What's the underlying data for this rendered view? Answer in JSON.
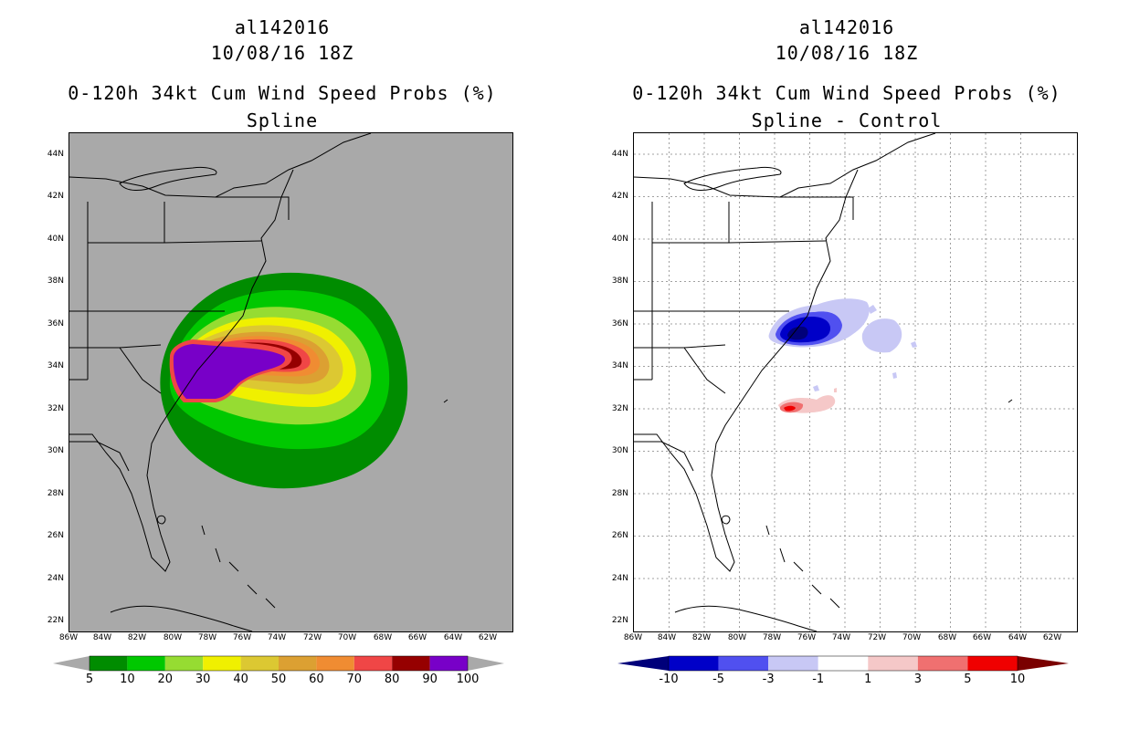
{
  "left": {
    "storm_id": "al142016",
    "datetime": "10/08/16 18Z",
    "product": "0-120h 34kt Cum Wind Speed Probs (%)",
    "subtitle": "Spline",
    "colorbar": {
      "colors": [
        "#008c00",
        "#00c800",
        "#96dc32",
        "#f0f000",
        "#dcc832",
        "#dca032",
        "#f08c32",
        "#f04646",
        "#960000",
        "#7800c8"
      ],
      "labels": [
        "5",
        "10",
        "20",
        "30",
        "40",
        "50",
        "60",
        "70",
        "80",
        "90",
        "100"
      ]
    }
  },
  "right": {
    "storm_id": "al142016",
    "datetime": "10/08/16 18Z",
    "product": "0-120h 34kt Cum Wind Speed Probs (%)",
    "subtitle": "Spline - Control",
    "colorbar": {
      "colors": [
        "#0000c8",
        "#5050f0",
        "#c8c8f5",
        "#ffffff",
        "#f5c8c8",
        "#f07070",
        "#f00000"
      ],
      "end_colors": [
        "#00007a",
        "#7a0000"
      ],
      "labels": [
        "-10",
        "-5",
        "-3",
        "-1",
        "1",
        "3",
        "5",
        "10"
      ]
    }
  },
  "lat_labels": [
    "44N",
    "42N",
    "40N",
    "38N",
    "36N",
    "34N",
    "32N",
    "30N",
    "28N",
    "26N",
    "24N",
    "22N"
  ],
  "lon_labels": [
    "86W",
    "84W",
    "82W",
    "80W",
    "78W",
    "76W",
    "74W",
    "72W",
    "70W",
    "68W",
    "66W",
    "64W",
    "62W"
  ],
  "colors": {
    "map_bg_left": "#a9a9a9",
    "map_bg_right": "#ffffff",
    "grid": "#a0a0a0"
  }
}
